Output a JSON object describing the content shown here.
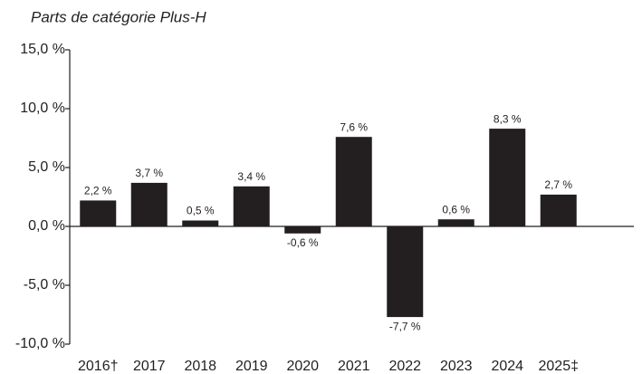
{
  "chart_data": {
    "type": "bar",
    "title": "Parts de catégorie Plus-H",
    "categories": [
      "2016†",
      "2017",
      "2018",
      "2019",
      "2020",
      "2021",
      "2022",
      "2023",
      "2024",
      "2025‡"
    ],
    "values": [
      2.2,
      3.7,
      0.5,
      3.4,
      -0.6,
      7.6,
      -7.7,
      0.6,
      8.3,
      2.7
    ],
    "value_labels": [
      "2,2 %",
      "3,7 %",
      "0,5 %",
      "3,4 %",
      "-0,6 %",
      "7,6 %",
      "-7,7 %",
      "0,6 %",
      "8,3 %",
      "2,7 %"
    ],
    "color": "#231f20",
    "ylim": [
      -10,
      15
    ],
    "yticks": [
      {
        "value": -10,
        "label": "-10,0 %"
      },
      {
        "value": -5,
        "label": "-5,0 %"
      },
      {
        "value": 0,
        "label": "0,0 %"
      },
      {
        "value": 5,
        "label": "5,0 %"
      },
      {
        "value": 10,
        "label": "10,0 %"
      },
      {
        "value": 15,
        "label": "15,0 %"
      }
    ],
    "grid": false
  }
}
